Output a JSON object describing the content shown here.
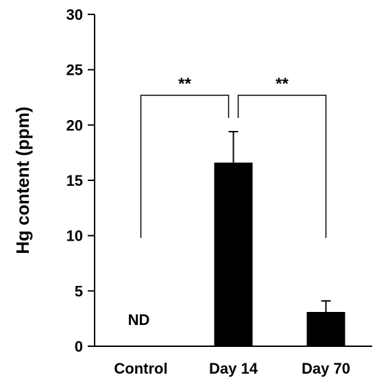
{
  "chart_data": {
    "type": "bar",
    "categories": [
      "Control",
      "Day 14",
      "Day 70"
    ],
    "values": [
      null,
      16.6,
      3.1
    ],
    "errors": [
      null,
      2.8,
      1.0
    ],
    "value_labels": [
      "ND",
      null,
      null
    ],
    "ylabel": "Hg content (ppm)",
    "xlabel": "",
    "ylim": [
      0,
      30
    ],
    "yticks": [
      "0",
      "5",
      "10",
      "15",
      "20",
      "25",
      "30"
    ],
    "grid": false,
    "bar_color": "#000000",
    "significance": [
      {
        "from": 0,
        "to": 1,
        "label": "**"
      },
      {
        "from": 1,
        "to": 2,
        "label": "**"
      }
    ]
  }
}
